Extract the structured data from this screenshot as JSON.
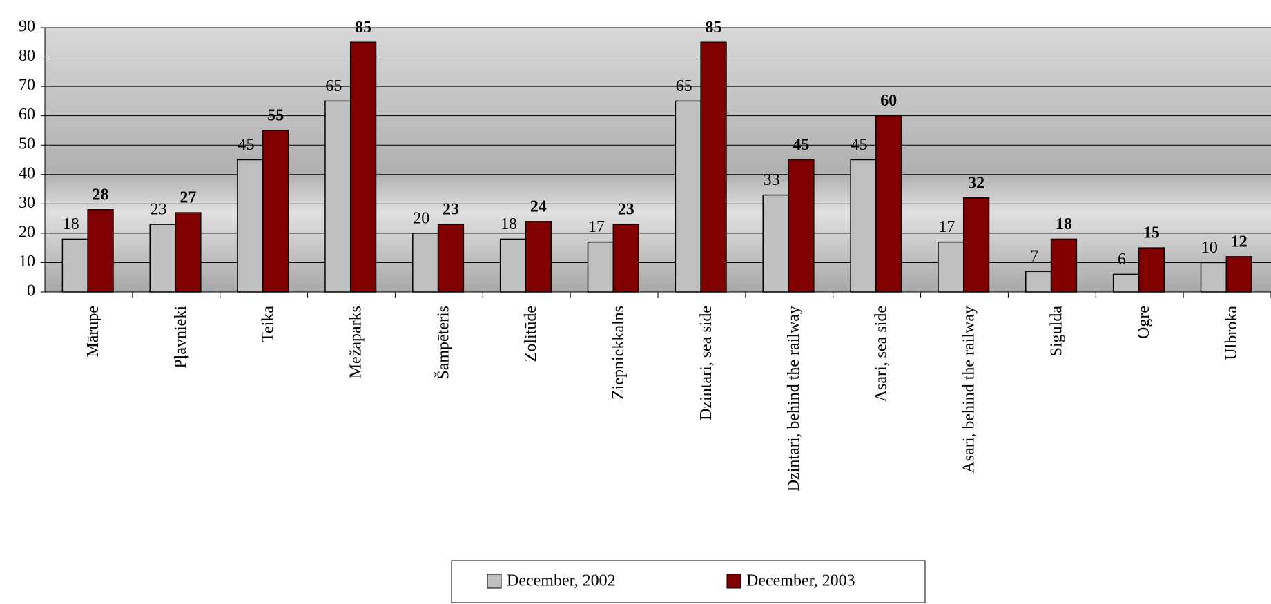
{
  "chart_data": {
    "type": "bar",
    "categories": [
      "Mārupe",
      "Pļavnieki",
      "Teika",
      "Mežaparks",
      "Šampēteris",
      "Zolitūde",
      "Ziepniekkalns",
      "Dzintari, sea side",
      "Dzintari, behind the railway",
      "Asari, sea side",
      "Asari, behind the railway",
      "Sigulda",
      "Ogre",
      "Ulbroka"
    ],
    "series": [
      {
        "name": "December, 2002",
        "color": "#c0c0c0",
        "values": [
          18,
          23,
          45,
          65,
          20,
          18,
          17,
          65,
          33,
          45,
          17,
          7,
          6,
          10
        ]
      },
      {
        "name": "December, 2003",
        "color": "#800000",
        "values": [
          28,
          27,
          55,
          85,
          23,
          24,
          23,
          85,
          45,
          60,
          32,
          18,
          15,
          12
        ]
      }
    ],
    "ylim": [
      0,
      90
    ],
    "yticks": [
      0,
      10,
      20,
      30,
      40,
      50,
      60,
      70,
      80,
      90
    ],
    "grid": true,
    "legend": "bottom"
  }
}
